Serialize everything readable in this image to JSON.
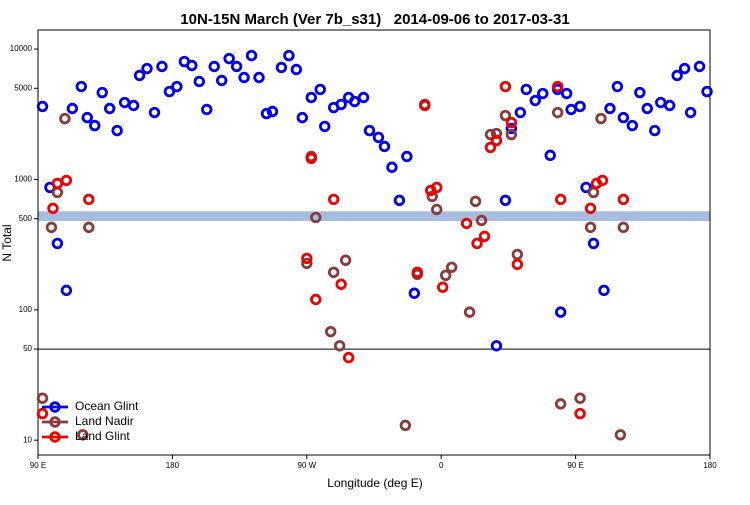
{
  "chart_data": {
    "type": "scatter",
    "title": "10N-15N March (Ver 7b_s31)   2014-09-06 to 2017-03-31",
    "xlabel": "Longitude (deg E)",
    "ylabel": "N Total",
    "log_y": true,
    "legend": "bottom left",
    "xlim": [
      90,
      540
    ],
    "xticks": [
      {
        "value": 90,
        "label": "90 E"
      },
      {
        "value": 180,
        "label": "180"
      },
      {
        "value": 270,
        "label": "90 W"
      },
      {
        "value": 360,
        "label": "0"
      },
      {
        "value": 450,
        "label": "90 E"
      },
      {
        "value": 540,
        "label": "180"
      }
    ],
    "ylim": [
      7.7,
      14000
    ],
    "yticks": [
      10,
      50,
      100,
      500,
      1000,
      5000,
      10000
    ],
    "shaded_band": {
      "range": [
        480,
        570
      ],
      "color": "#a7bde0"
    },
    "hline": {
      "value": 50,
      "color": "#000000"
    },
    "series": [
      {
        "name": "Ocean Glint",
        "color": "#0000ee",
        "x": [
          93,
          98,
          103,
          109,
          113,
          119,
          123,
          128,
          133,
          138,
          143,
          148,
          154,
          158,
          163,
          168,
          173,
          178,
          183,
          188,
          193,
          198,
          203,
          208,
          213,
          218,
          223,
          228,
          233,
          238,
          243,
          247,
          253,
          258,
          263,
          267,
          273,
          279,
          282,
          288,
          293,
          298,
          302,
          308,
          312,
          318,
          322,
          327,
          332,
          337,
          342,
          397,
          403,
          407,
          413,
          417,
          423,
          428,
          433,
          438,
          440,
          444,
          447,
          453,
          457,
          462,
          469,
          473,
          478,
          482,
          488,
          493,
          498,
          503,
          507,
          513,
          518,
          523,
          527,
          533,
          538
        ],
        "values": [
          3630,
          868,
          323,
          141,
          3500,
          5160,
          2980,
          2590,
          4640,
          3500,
          2370,
          3890,
          3690,
          6270,
          7090,
          3260,
          7350,
          4720,
          5160,
          8020,
          7480,
          5640,
          3440,
          7350,
          5740,
          8450,
          7350,
          6050,
          8913,
          6050,
          3200,
          3320,
          7220,
          8913,
          6970,
          2980,
          4250,
          4900,
          2550,
          3560,
          3760,
          4250,
          3960,
          4250,
          2370,
          2100,
          1790,
          1240,
          691,
          1500,
          134,
          53,
          691,
          2460,
          3260,
          4900,
          4030,
          4560,
          1530,
          4900,
          96,
          4560,
          3440,
          3630,
          868,
          323,
          141,
          3500,
          5160,
          2980,
          2590,
          4640,
          3500,
          2370,
          3890,
          3690,
          6270,
          7090,
          3260,
          7350,
          4720
        ]
      },
      {
        "name": "Land Nadir",
        "color": "#8b3a3a",
        "x": [
          93,
          99,
          103,
          108,
          124,
          120,
          270,
          273,
          276,
          286,
          288,
          292,
          296,
          336,
          344,
          349,
          354,
          357,
          363,
          367,
          379,
          383,
          387,
          393,
          397,
          403,
          407,
          411,
          438,
          440,
          453,
          460,
          462,
          467,
          480,
          482
        ],
        "values": [
          21,
          429,
          795,
          2930,
          429,
          11,
          227,
          1500,
          511,
          68,
          194,
          53,
          240,
          13,
          187,
          3760,
          741,
          589,
          184,
          212,
          96,
          679,
          485,
          2210,
          2250,
          3090,
          2210,
          266,
          3260,
          19,
          21,
          429,
          795,
          2930,
          11,
          429
        ]
      },
      {
        "name": "Land Glint",
        "color": "#ee0000",
        "x": [
          93,
          100,
          103,
          109,
          124,
          273,
          270,
          276,
          288,
          293,
          298,
          344,
          349,
          353,
          357,
          361,
          377,
          384,
          389,
          393,
          397,
          403,
          407,
          411,
          438,
          440,
          453,
          460,
          464,
          468,
          482
        ],
        "values": [
          16,
          600,
          931,
          983,
          703,
          1450,
          248,
          120,
          703,
          157,
          43,
          194,
          3690,
          824,
          868,
          149,
          460,
          323,
          366,
          1760,
          1990,
          5160,
          2730,
          223,
          5160,
          703,
          16,
          600,
          931,
          983,
          703
        ]
      }
    ]
  }
}
